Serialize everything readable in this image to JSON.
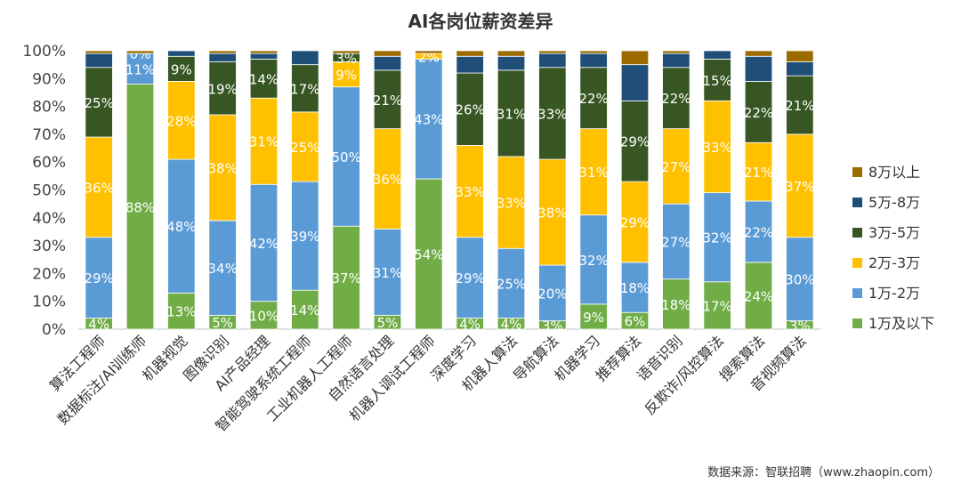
{
  "chart_data": {
    "type": "bar",
    "stacked": true,
    "percent": true,
    "title": "AI各岗位薪资差异",
    "source": "数据来源：智联招聘（www.zhaopin.com）",
    "ylim": [
      0,
      100
    ],
    "yticks": [
      "0%",
      "10%",
      "20%",
      "30%",
      "40%",
      "50%",
      "60%",
      "70%",
      "80%",
      "90%",
      "100%"
    ],
    "categories": [
      "算法工程师",
      "数据标注/AI训练师",
      "机器视觉",
      "图像识别",
      "AI产品经理",
      "智能驾驶系统工程师",
      "工业机器人工程师",
      "自然语言处理",
      "机器人调试工程师",
      "深度学习",
      "机器人算法",
      "导航算法",
      "机器学习",
      "推荐算法",
      "语音识别",
      "反欺诈/风控算法",
      "搜索算法",
      "音视频算法"
    ],
    "legend_position": "right",
    "series": [
      {
        "name": "1万及以下",
        "color": "#70ad47",
        "values": [
          4,
          88,
          13,
          5,
          10,
          14,
          37,
          5,
          54,
          4,
          4,
          3,
          9,
          6,
          18,
          17,
          24,
          3
        ],
        "labels": [
          "4%",
          "88%",
          "13%",
          "5%",
          "10%",
          "14%",
          "37%",
          "5%",
          "54%",
          "4%",
          "4%",
          "3%",
          "9%",
          "6%",
          "18%",
          "17%",
          "24%",
          "3%"
        ]
      },
      {
        "name": "1万-2万",
        "color": "#5b9bd5",
        "values": [
          29,
          11,
          48,
          34,
          42,
          39,
          50,
          31,
          43,
          29,
          25,
          20,
          32,
          18,
          27,
          32,
          22,
          30
        ],
        "labels": [
          "29%",
          "11%",
          "48%",
          "34%",
          "42%",
          "39%",
          "50%",
          "31%",
          "43%",
          "29%",
          "25%",
          "20%",
          "32%",
          "18%",
          "27%",
          "32%",
          "22%",
          "30%"
        ]
      },
      {
        "name": "2万-3万",
        "color": "#ffc000",
        "values": [
          36,
          0,
          28,
          38,
          31,
          25,
          9,
          36,
          2,
          33,
          33,
          38,
          31,
          29,
          27,
          33,
          21,
          37
        ],
        "labels": [
          "36%",
          "0%",
          "28%",
          "38%",
          "31%",
          "25%",
          "9%",
          "36%",
          "2%",
          "33%",
          "33%",
          "38%",
          "31%",
          "29%",
          "27%",
          "33%",
          "21%",
          "37%"
        ]
      },
      {
        "name": "3万-5万",
        "color": "#375623",
        "values": [
          25,
          0,
          9,
          19,
          14,
          17,
          3,
          21,
          0,
          26,
          31,
          33,
          22,
          29,
          22,
          15,
          22,
          21
        ],
        "labels": [
          "25%",
          "",
          "9%",
          "19%",
          "14%",
          "17%",
          "3%",
          "21%",
          "",
          "26%",
          "31%",
          "33%",
          "22%",
          "29%",
          "22%",
          "15%",
          "22%",
          "21%"
        ]
      },
      {
        "name": "5万-8万",
        "color": "#1f4e79",
        "values": [
          5,
          0,
          2,
          3,
          2,
          5,
          0,
          5,
          0,
          6,
          5,
          5,
          5,
          13,
          5,
          3,
          9,
          5
        ],
        "labels": [
          "",
          "",
          "",
          "",
          "",
          "",
          "",
          "",
          "",
          "",
          "",
          "",
          "",
          "",
          "",
          "",
          "",
          ""
        ]
      },
      {
        "name": "8万以上",
        "color": "#9c6b00",
        "values": [
          1,
          1,
          0,
          1,
          1,
          0,
          1,
          2,
          1,
          2,
          2,
          1,
          1,
          5,
          1,
          0,
          2,
          4
        ],
        "labels": [
          "",
          "",
          "",
          "",
          "",
          "",
          "",
          "",
          "",
          "",
          "",
          "",
          "",
          "",
          "",
          "",
          "",
          ""
        ]
      }
    ],
    "legend_order": [
      "8万以上",
      "5万-8万",
      "3万-5万",
      "2万-3万",
      "1万-2万",
      "1万及以下"
    ]
  }
}
